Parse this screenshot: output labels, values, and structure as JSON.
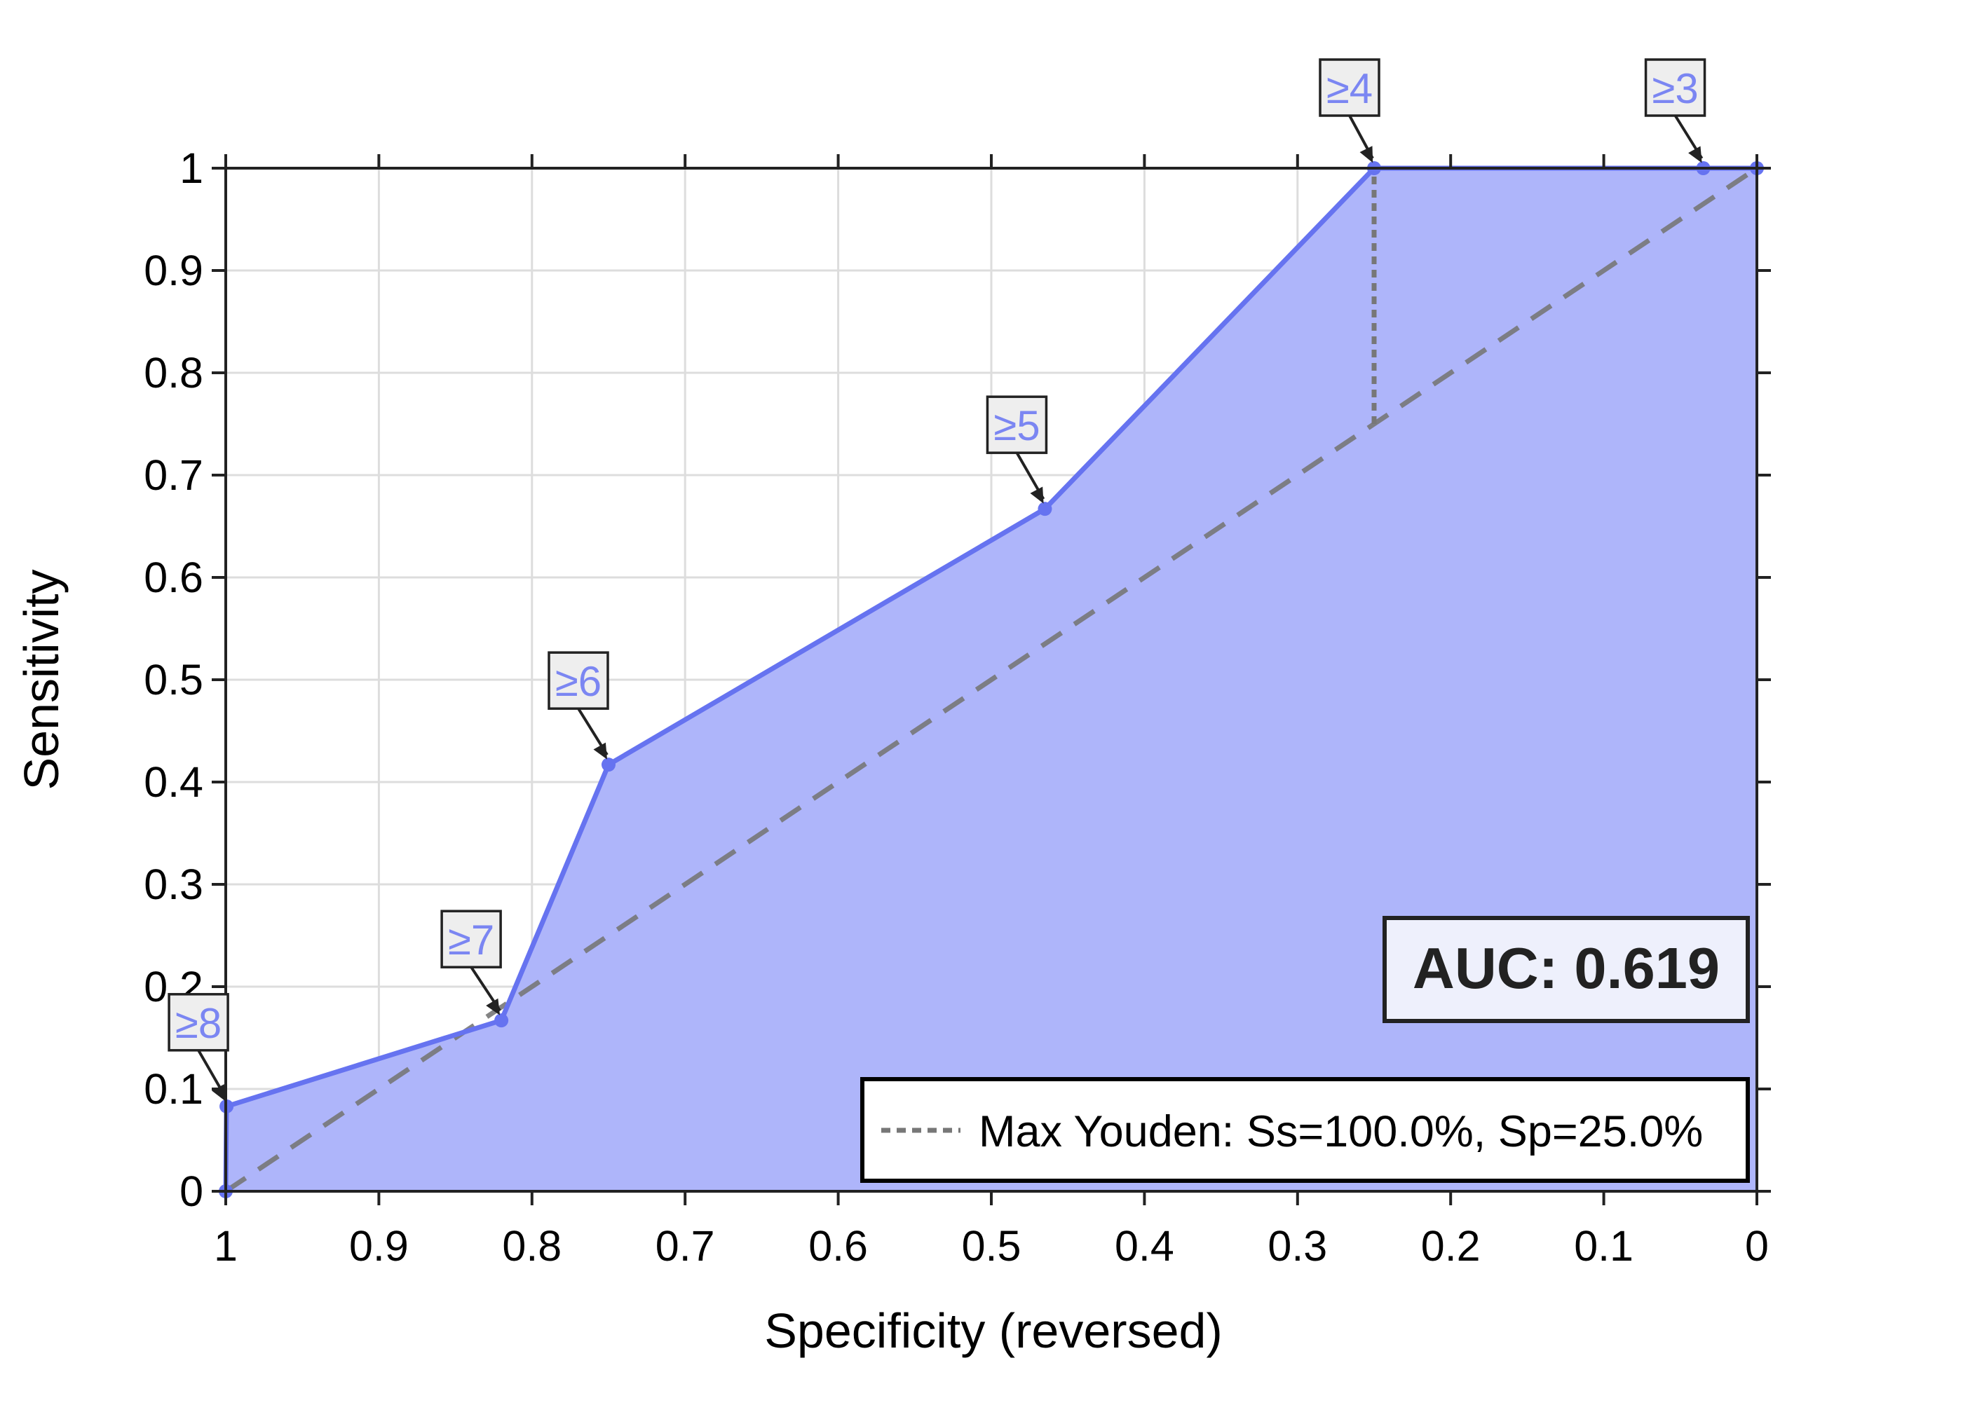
{
  "chart_data": {
    "type": "line",
    "title": "",
    "xlabel": "Specificity (reversed)",
    "ylabel": "Sensitivity",
    "xlim": [
      1,
      0
    ],
    "ylim": [
      0,
      1
    ],
    "x_reversed": true,
    "grid": true,
    "x_ticks": [
      1,
      0.9,
      0.8,
      0.7,
      0.6,
      0.5,
      0.4,
      0.3,
      0.2,
      0.1,
      0
    ],
    "x_tick_labels": [
      "1",
      "0.9",
      "0.8",
      "0.7",
      "0.6",
      "0.5",
      "0.4",
      "0.3",
      "0.2",
      "0.1",
      "0"
    ],
    "y_ticks": [
      0,
      0.1,
      0.2,
      0.3,
      0.4,
      0.5,
      0.6,
      0.7,
      0.8,
      0.9,
      1
    ],
    "y_tick_labels": [
      "0",
      "0.1",
      "0.2",
      "0.3",
      "0.4",
      "0.5",
      "0.6",
      "0.7",
      "0.8",
      "0.9",
      "1"
    ],
    "series": [
      {
        "specificity": [
          1.0,
          0.9995,
          0.82,
          0.75,
          0.465,
          0.25,
          0.035,
          0.0
        ],
        "sensitivity": [
          0.0,
          0.083,
          0.167,
          0.417,
          0.667,
          1.0,
          1.0,
          1.0
        ],
        "color": "#6673f0",
        "fill": "#aeb5fa"
      }
    ],
    "thresholds": [
      {
        "label": "≥8",
        "specificity": 0.9995,
        "sensitivity": 0.083
      },
      {
        "label": "≥7",
        "specificity": 0.82,
        "sensitivity": 0.167
      },
      {
        "label": "≥6",
        "specificity": 0.75,
        "sensitivity": 0.417
      },
      {
        "label": "≥5",
        "specificity": 0.465,
        "sensitivity": 0.667
      },
      {
        "label": "≥4",
        "specificity": 0.25,
        "sensitivity": 1.0
      },
      {
        "label": "≥3",
        "specificity": 0.035,
        "sensitivity": 1.0
      }
    ],
    "reference_line": {
      "from": [
        1,
        0
      ],
      "to": [
        0,
        1
      ],
      "style": "dashed",
      "color": "#777777"
    },
    "youden": {
      "specificity": 0.25,
      "sensitivity_from": 0.75,
      "sensitivity_to": 1.0,
      "style": "dotted",
      "color": "#777777"
    },
    "auc_label": "AUC: 0.619",
    "legend": {
      "position": "bottom-right",
      "label": "Max Youden: Ss=100.0%, Sp=25.0%"
    }
  }
}
